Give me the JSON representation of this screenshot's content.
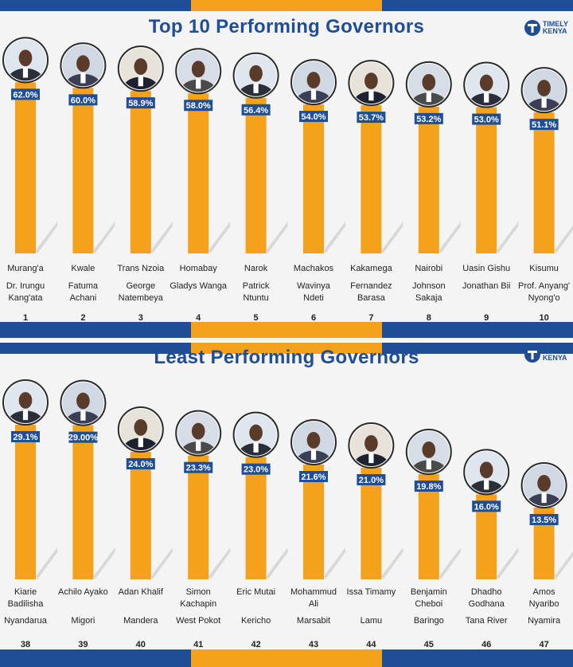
{
  "brand": {
    "logo_line1": "TIMELY",
    "logo_line2": "KENYA"
  },
  "colors": {
    "accent_blue": "#1f4e97",
    "accent_orange": "#f4a21c",
    "background": "#f4f4f4"
  },
  "chart_data": [
    {
      "type": "bar",
      "title": "Top 10 Performing Governors",
      "value_suffix": "%",
      "ylim": [
        0,
        65
      ],
      "bars": [
        {
          "county": "Murang'a",
          "name": [
            "Dr. Irungu",
            "Kang'ata"
          ],
          "value": 62.0,
          "label": "62.0%",
          "rank": "1"
        },
        {
          "county": "Kwale",
          "name": [
            "Fatuma",
            "Achani"
          ],
          "value": 60.0,
          "label": "60.0%",
          "rank": "2"
        },
        {
          "county": "Trans Nzoia",
          "name": [
            "George",
            "Natembeya"
          ],
          "value": 58.9,
          "label": "58.9%",
          "rank": "3"
        },
        {
          "county": "Homabay",
          "name": [
            "Gladys Wanga"
          ],
          "value": 58.0,
          "label": "58.0%",
          "rank": "4"
        },
        {
          "county": "Narok",
          "name": [
            "Patrick",
            "Ntuntu"
          ],
          "value": 56.4,
          "label": "56.4%",
          "rank": "5"
        },
        {
          "county": "Machakos",
          "name": [
            "Wavinya",
            "Ndeti"
          ],
          "value": 54.0,
          "label": "54.0%",
          "rank": "6"
        },
        {
          "county": "Kakamega",
          "name": [
            "Fernandez",
            "Barasa"
          ],
          "value": 53.7,
          "label": "53.7%",
          "rank": "7"
        },
        {
          "county": "Nairobi",
          "name": [
            "Johnson",
            "Sakaja"
          ],
          "value": 53.2,
          "label": "53.2%",
          "rank": "8"
        },
        {
          "county": "Uasin Gishu",
          "name": [
            "Jonathan Bii"
          ],
          "value": 53.0,
          "label": "53.0%",
          "rank": "9"
        },
        {
          "county": "Kisumu",
          "name": [
            "Prof. Anyang'",
            "Nyong'o"
          ],
          "value": 51.1,
          "label": "51.1%",
          "rank": "10"
        }
      ]
    },
    {
      "type": "bar",
      "title": "Least Performing Governors",
      "value_suffix": "%",
      "ylim": [
        0,
        30
      ],
      "bars": [
        {
          "name": [
            "Kiarie",
            "Badilisha"
          ],
          "county": "Nyandarua",
          "value": 29.1,
          "label": "29.1%",
          "rank": "38"
        },
        {
          "name": [
            "Achilo Ayako"
          ],
          "county": "Migori",
          "value": 29.0,
          "label": "29.00%",
          "rank": "39"
        },
        {
          "name": [
            "Adan Khalif"
          ],
          "county": "Mandera",
          "value": 24.0,
          "label": "24.0%",
          "rank": "40"
        },
        {
          "name": [
            "Simon",
            "Kachapin"
          ],
          "county": "West Pokot",
          "value": 23.3,
          "label": "23.3%",
          "rank": "41"
        },
        {
          "name": [
            "Eric Mutai"
          ],
          "county": "Kericho",
          "value": 23.0,
          "label": "23.0%",
          "rank": "42"
        },
        {
          "name": [
            "Mohammud",
            "Ali"
          ],
          "county": "Marsabit",
          "value": 21.6,
          "label": "21.6%",
          "rank": "43"
        },
        {
          "name": [
            "Issa Timamy"
          ],
          "county": "Lamu",
          "value": 21.0,
          "label": "21.0%",
          "rank": "44"
        },
        {
          "name": [
            "Benjamin",
            "Cheboi"
          ],
          "county": "Baringo",
          "value": 19.8,
          "label": "19.8%",
          "rank": "45"
        },
        {
          "name": [
            "Dhadho",
            "Godhana"
          ],
          "county": "Tana River",
          "value": 16.0,
          "label": "16.0%",
          "rank": "46"
        },
        {
          "name": [
            "Amos",
            "Nyaribo"
          ],
          "county": "Nyamira",
          "value": 13.5,
          "label": "13.5%",
          "rank": "47"
        }
      ]
    }
  ]
}
